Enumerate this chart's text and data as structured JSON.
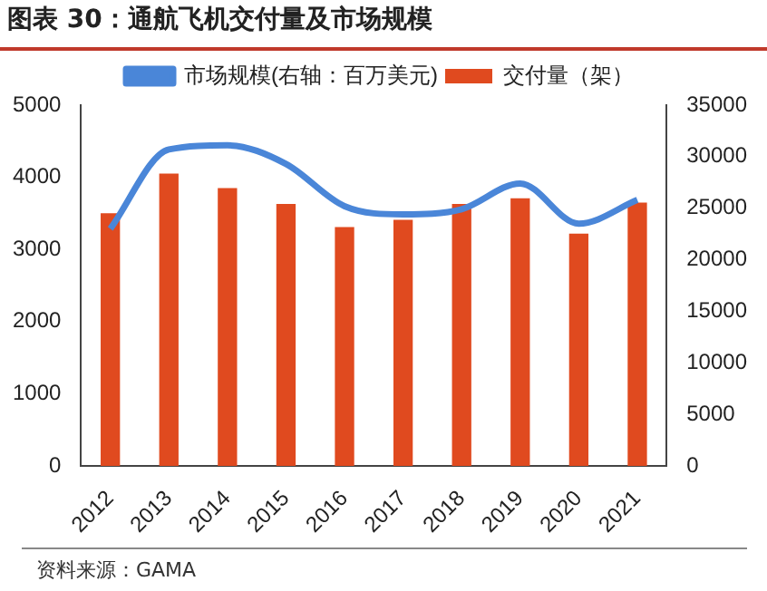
{
  "chart_data": {
    "type": "bar",
    "title": "图表 30：通航飞机交付量及市场规模",
    "annotations": [
      "资料来源：GAMA"
    ],
    "categories": [
      "2012",
      "2013",
      "2014",
      "2015",
      "2016",
      "2017",
      "2018",
      "2019",
      "2020",
      "2021"
    ],
    "series": [
      {
        "name": "交付量（架）",
        "color": "#e04a1f",
        "values": [
          3500,
          4050,
          3850,
          3630,
          3310,
          3410,
          3630,
          3710,
          3220,
          3650
        ]
      },
      {
        "name": "市场规模(右轴：百万美元)",
        "type": "line",
        "axis": "y2",
        "color": "#4a86d8",
        "values": [
          23000,
          30700,
          31100,
          29300,
          25200,
          24400,
          24900,
          27400,
          23500,
          25800
        ]
      }
    ],
    "ylim": [
      0,
      5000
    ],
    "yticks": [
      0,
      1000,
      2000,
      3000,
      4000,
      5000
    ],
    "y2lim": [
      0,
      35000
    ],
    "y2ticks": [
      0,
      5000,
      10000,
      15000,
      20000,
      25000,
      30000,
      35000
    ],
    "grid": false,
    "legend": "top",
    "marker": "none"
  }
}
